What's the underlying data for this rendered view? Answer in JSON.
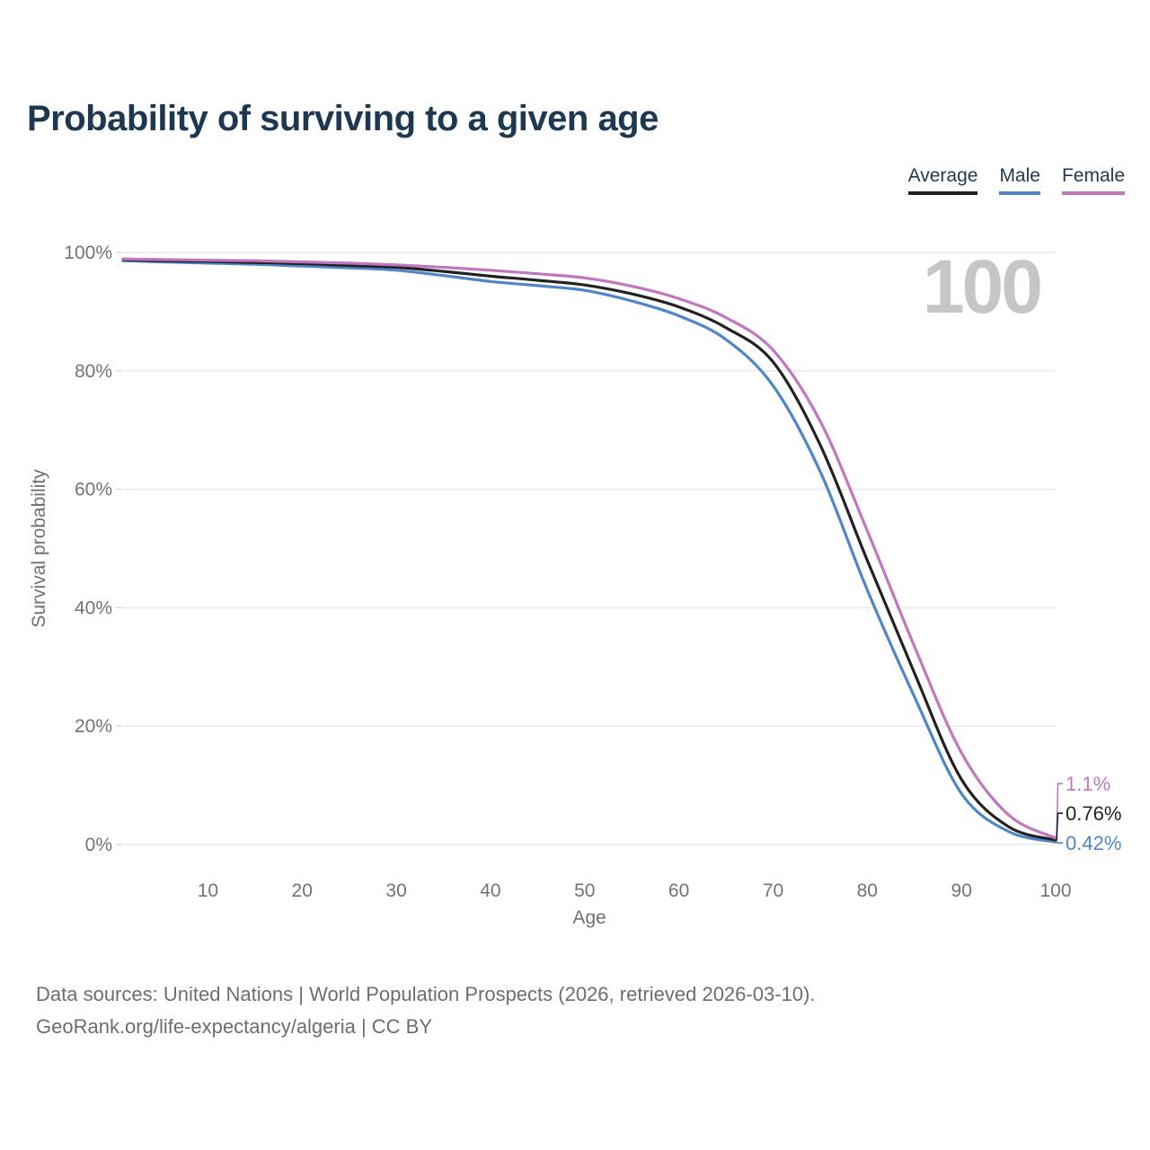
{
  "title": "Probability of surviving to a given age",
  "watermark": "100",
  "legend": {
    "items": [
      {
        "key": "average",
        "label": "Average",
        "color": "#222222"
      },
      {
        "key": "male",
        "label": "Male",
        "color": "#4f86c8"
      },
      {
        "key": "female",
        "label": "Female",
        "color": "#c077c0"
      }
    ]
  },
  "footer": {
    "line1": "Data sources: United Nations | World Population Prospects (2026, retrieved 2026-03-10).",
    "line2": "GeoRank.org/life-expectancy/algeria | CC BY"
  },
  "chart_data": {
    "type": "line",
    "title": "Probability of surviving to a given age",
    "xlabel": "Age",
    "ylabel": "Survival probability",
    "xlim": [
      1,
      100
    ],
    "ylim": [
      0,
      100
    ],
    "x_ticks": [
      10,
      20,
      30,
      40,
      50,
      60,
      70,
      80,
      90,
      100
    ],
    "y_ticks": [
      0,
      20,
      40,
      60,
      80,
      100
    ],
    "y_tick_suffix": "%",
    "grid": "horizontal",
    "legend_position": "top-right",
    "x": [
      1,
      5,
      10,
      15,
      20,
      25,
      30,
      35,
      40,
      45,
      50,
      55,
      60,
      65,
      70,
      75,
      80,
      85,
      90,
      95,
      100
    ],
    "series": [
      {
        "key": "male",
        "name": "Male",
        "color": "#4f86c8",
        "end_label": "0.42%",
        "values": [
          98.6,
          98.4,
          98.2,
          98.0,
          97.7,
          97.4,
          97.0,
          96.1,
          95.1,
          94.4,
          93.6,
          91.8,
          89.3,
          85.3,
          77.5,
          63.0,
          43.0,
          25.0,
          8.6,
          2.2,
          0.42
        ]
      },
      {
        "key": "average",
        "name": "Average",
        "color": "#222222",
        "end_label": "0.76%",
        "values": [
          98.8,
          98.6,
          98.5,
          98.3,
          98.1,
          97.8,
          97.5,
          96.8,
          96.0,
          95.3,
          94.5,
          93.0,
          90.8,
          87.3,
          81.5,
          67.5,
          48.0,
          29.0,
          11.0,
          3.0,
          0.76
        ]
      },
      {
        "key": "female",
        "name": "Female",
        "color": "#c077c0",
        "end_label": "1.1%",
        "values": [
          98.9,
          98.8,
          98.7,
          98.6,
          98.4,
          98.2,
          97.9,
          97.5,
          97.0,
          96.4,
          95.7,
          94.3,
          92.2,
          89.0,
          83.5,
          71.5,
          53.0,
          33.5,
          15.5,
          5.0,
          1.1
        ]
      }
    ],
    "colors": {
      "grid": "#eaeaea",
      "tick_text": "#737373",
      "axis_title_text": "#6f6f6f",
      "watermark": "#c6c6c6"
    }
  }
}
